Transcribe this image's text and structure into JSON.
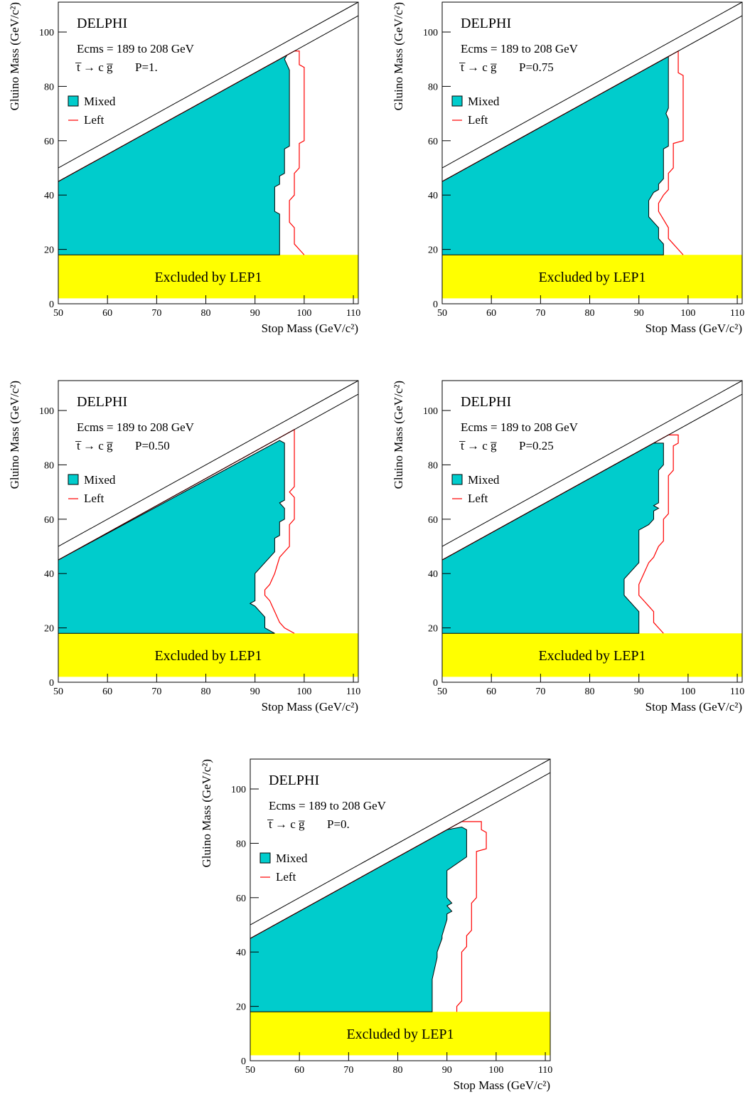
{
  "chart_data": [
    {
      "type": "area",
      "title": "DELPHI",
      "subtitle": "Ecms = 189 to 208 GeV",
      "process": "t̅ → c g̅",
      "annotation": "P=1.",
      "xlabel": "Stop Mass (GeV/c²)",
      "ylabel": "Gluino Mass (GeV/c²)",
      "excluded_label": "Excluded by LEP1",
      "band": [
        2,
        18
      ],
      "band_color": "#ffff00",
      "xlim": [
        50,
        111
      ],
      "ylim": [
        0,
        111
      ],
      "xticks": [
        50,
        60,
        70,
        80,
        90,
        100,
        110
      ],
      "yticks": [
        0,
        20,
        40,
        60,
        80,
        100
      ],
      "lines": [
        {
          "x": [
            50,
            111
          ],
          "values": [
            50,
            111
          ]
        },
        {
          "x": [
            50,
            111
          ],
          "values": [
            45,
            106
          ]
        }
      ],
      "series": [
        {
          "name": "Mixed",
          "color": "#00cccc",
          "x": [
            50,
            50,
            96.5,
            96,
            96.5,
            97,
            97,
            96,
            96,
            95,
            95,
            94,
            94,
            95,
            95
          ],
          "values": [
            18,
            45,
            91.5,
            90,
            88,
            86,
            58,
            57,
            48,
            47,
            44,
            43,
            34,
            33,
            18
          ]
        },
        {
          "name": "Left",
          "color": "#ff0000",
          "x": [
            50,
            98,
            99,
            99,
            100,
            100,
            99,
            99,
            98,
            98,
            97,
            97,
            98,
            98,
            99,
            100
          ],
          "values": [
            45,
            93,
            93,
            88,
            87,
            60,
            59,
            50,
            48,
            40,
            38,
            30,
            28,
            22,
            20,
            18
          ]
        }
      ]
    },
    {
      "type": "area",
      "title": "DELPHI",
      "subtitle": "Ecms = 189 to 208 GeV",
      "process": "t̅ → c g̅",
      "annotation": "P=0.75",
      "xlabel": "Stop Mass (GeV/c²)",
      "ylabel": "Gluino Mass (GeV/c²)",
      "excluded_label": "Excluded by LEP1",
      "band": [
        2,
        18
      ],
      "band_color": "#ffff00",
      "xlim": [
        50,
        111
      ],
      "ylim": [
        0,
        111
      ],
      "xticks": [
        50,
        60,
        70,
        80,
        90,
        100,
        110
      ],
      "yticks": [
        0,
        20,
        40,
        60,
        80,
        100
      ],
      "lines": [
        {
          "x": [
            50,
            111
          ],
          "values": [
            50,
            111
          ]
        },
        {
          "x": [
            50,
            111
          ],
          "values": [
            45,
            106
          ]
        }
      ],
      "series": [
        {
          "name": "Mixed",
          "color": "#00cccc",
          "x": [
            50,
            50,
            96,
            96,
            95.5,
            96,
            96,
            95,
            95,
            94,
            94,
            93,
            92,
            92,
            93,
            94,
            94,
            95,
            95
          ],
          "values": [
            18,
            45,
            91,
            72,
            70,
            68,
            58,
            57,
            46,
            44,
            42,
            41,
            38,
            32,
            30,
            28,
            24,
            22,
            18
          ]
        },
        {
          "name": "Left",
          "color": "#ff0000",
          "x": [
            50,
            98,
            98,
            99,
            99,
            97,
            97,
            96,
            96,
            95,
            94,
            94,
            95,
            96,
            96,
            97,
            98,
            99
          ],
          "values": [
            45,
            93,
            85,
            84,
            60,
            59,
            50,
            48,
            42,
            40,
            37,
            34,
            31,
            28,
            24,
            22,
            20,
            18
          ]
        }
      ]
    },
    {
      "type": "area",
      "title": "DELPHI",
      "subtitle": "Ecms = 189 to 208 GeV",
      "process": "t̅ → c g̅",
      "annotation": "P=0.50",
      "xlabel": "Stop Mass (GeV/c²)",
      "ylabel": "Gluino Mass (GeV/c²)",
      "excluded_label": "Excluded by LEP1",
      "band": [
        2,
        18
      ],
      "band_color": "#ffff00",
      "xlim": [
        50,
        111
      ],
      "ylim": [
        0,
        111
      ],
      "xticks": [
        50,
        60,
        70,
        80,
        90,
        100,
        110
      ],
      "yticks": [
        0,
        20,
        40,
        60,
        80,
        100
      ],
      "lines": [
        {
          "x": [
            50,
            111
          ],
          "values": [
            50,
            111
          ]
        },
        {
          "x": [
            50,
            111
          ],
          "values": [
            45,
            106
          ]
        }
      ],
      "series": [
        {
          "name": "Mixed",
          "color": "#00cccc",
          "x": [
            50,
            50,
            95,
            96,
            96,
            95,
            96,
            96,
            95,
            95,
            94,
            94,
            93,
            92,
            91,
            90,
            90,
            89,
            90,
            91,
            92,
            92,
            93,
            94
          ],
          "values": [
            18,
            45,
            89,
            88,
            67,
            66,
            64,
            60,
            59,
            54,
            53,
            48,
            46,
            44,
            42,
            40,
            30,
            29,
            28,
            26,
            24,
            20,
            19,
            18
          ]
        },
        {
          "name": "Left",
          "color": "#ff0000",
          "x": [
            50,
            97,
            98,
            98,
            97,
            98,
            98,
            97,
            97,
            96,
            95,
            94,
            93,
            92,
            92,
            93,
            94,
            95,
            96,
            98
          ],
          "values": [
            45,
            92,
            93,
            72,
            70,
            68,
            60,
            58,
            50,
            48,
            46,
            40,
            36,
            34,
            32,
            30,
            26,
            22,
            20,
            18
          ]
        }
      ]
    },
    {
      "type": "area",
      "title": "DELPHI",
      "subtitle": "Ecms = 189 to 208 GeV",
      "process": "t̅ → c g̅",
      "annotation": "P=0.25",
      "xlabel": "Stop Mass (GeV/c²)",
      "ylabel": "Gluino Mass (GeV/c²)",
      "excluded_label": "Excluded by LEP1",
      "band": [
        2,
        18
      ],
      "band_color": "#ffff00",
      "xlim": [
        50,
        111
      ],
      "ylim": [
        0,
        111
      ],
      "xticks": [
        50,
        60,
        70,
        80,
        90,
        100,
        110
      ],
      "yticks": [
        0,
        20,
        40,
        60,
        80,
        100
      ],
      "lines": [
        {
          "x": [
            50,
            111
          ],
          "values": [
            50,
            111
          ]
        },
        {
          "x": [
            50,
            111
          ],
          "values": [
            45,
            106
          ]
        }
      ],
      "series": [
        {
          "name": "Mixed",
          "color": "#00cccc",
          "x": [
            50,
            50,
            93,
            95,
            95,
            94,
            94,
            93,
            94,
            93,
            93,
            92,
            91,
            90,
            90,
            89,
            88,
            87,
            87,
            88,
            89,
            90,
            90
          ],
          "values": [
            18,
            45,
            88,
            88,
            80,
            78,
            66,
            65,
            64,
            63,
            60,
            58,
            57,
            56,
            44,
            42,
            40,
            38,
            32,
            30,
            28,
            26,
            18
          ]
        },
        {
          "name": "Left",
          "color": "#ff0000",
          "x": [
            50,
            96,
            98,
            98,
            97,
            97,
            96,
            96,
            95,
            95,
            94,
            93,
            92,
            91,
            90,
            90,
            91,
            92,
            93,
            93,
            94,
            95
          ],
          "values": [
            45,
            91,
            91,
            88,
            87,
            78,
            76,
            62,
            60,
            52,
            50,
            46,
            44,
            40,
            36,
            32,
            30,
            28,
            26,
            22,
            20,
            18
          ]
        }
      ]
    },
    {
      "type": "area",
      "title": "DELPHI",
      "subtitle": "Ecms = 189 to 208 GeV",
      "process": "t̅ → c g̅",
      "annotation": "P=0.",
      "xlabel": "Stop Mass (GeV/c²)",
      "ylabel": "Gluino Mass (GeV/c²)",
      "excluded_label": "Excluded by LEP1",
      "band": [
        2,
        18
      ],
      "band_color": "#ffff00",
      "xlim": [
        50,
        111
      ],
      "ylim": [
        0,
        111
      ],
      "xticks": [
        50,
        60,
        70,
        80,
        90,
        100,
        110
      ],
      "yticks": [
        0,
        20,
        40,
        60,
        80,
        100
      ],
      "lines": [
        {
          "x": [
            50,
            111
          ],
          "values": [
            50,
            111
          ]
        },
        {
          "x": [
            50,
            111
          ],
          "values": [
            45,
            106
          ]
        }
      ],
      "series": [
        {
          "name": "Mixed",
          "color": "#00cccc",
          "x": [
            50,
            50,
            90,
            93,
            94,
            94,
            90,
            90,
            91,
            90,
            91,
            90,
            90,
            89,
            89,
            88,
            88,
            87,
            87
          ],
          "values": [
            18,
            45,
            85,
            86,
            85,
            75,
            70,
            60,
            58,
            57,
            55,
            54,
            52,
            46,
            45,
            40,
            38,
            30,
            18
          ]
        },
        {
          "name": "Left",
          "color": "#ff0000",
          "x": [
            50,
            93,
            97,
            97,
            98,
            98,
            96,
            96,
            95,
            95,
            94,
            94,
            93,
            93,
            92,
            92
          ],
          "values": [
            45,
            88,
            88,
            85,
            84,
            78,
            77,
            60,
            58,
            48,
            46,
            42,
            40,
            22,
            20,
            18
          ]
        }
      ]
    }
  ]
}
